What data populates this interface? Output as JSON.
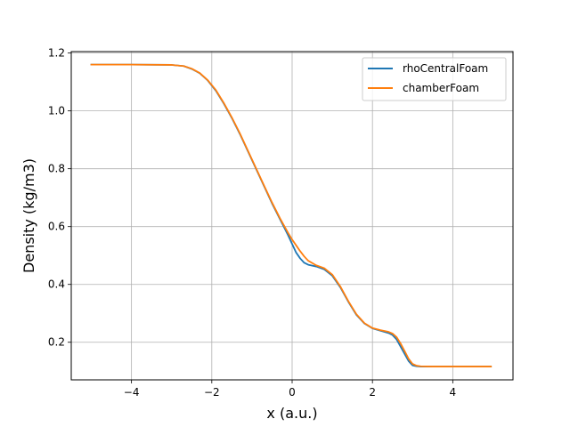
{
  "chart_data": {
    "type": "line",
    "title": "",
    "xlabel": "x (a.u.)",
    "ylabel": "Density (kg/m3)",
    "xlim": [
      -5.5,
      5.5
    ],
    "ylim": [
      0.07,
      1.205
    ],
    "grid": true,
    "legend_position": "top-right",
    "xticks": [
      {
        "value": -4,
        "label": "−4"
      },
      {
        "value": -2,
        "label": "−2"
      },
      {
        "value": 0,
        "label": "0"
      },
      {
        "value": 2,
        "label": "2"
      },
      {
        "value": 4,
        "label": "4"
      }
    ],
    "yticks": [
      {
        "value": 0.2,
        "label": "0.2"
      },
      {
        "value": 0.4,
        "label": "0.4"
      },
      {
        "value": 0.6,
        "label": "0.6"
      },
      {
        "value": 0.8,
        "label": "0.8"
      },
      {
        "value": 1.0,
        "label": "1.0"
      },
      {
        "value": 1.2,
        "label": "1.2"
      }
    ],
    "series": [
      {
        "name": "rhoCentralFoam",
        "color": "#1f77b4",
        "x": [
          -5,
          -4,
          -3,
          -2.7,
          -2.5,
          -2.3,
          -2.1,
          -1.9,
          -1.7,
          -1.5,
          -1.3,
          -1.1,
          -0.9,
          -0.7,
          -0.5,
          -0.3,
          -0.1,
          0.0,
          0.1,
          0.2,
          0.3,
          0.4,
          0.6,
          0.8,
          1.0,
          1.2,
          1.4,
          1.6,
          1.8,
          2.0,
          2.2,
          2.4,
          2.5,
          2.6,
          2.7,
          2.8,
          2.9,
          3.0,
          3.1,
          3.2,
          3.5,
          4.0,
          4.5,
          4.95
        ],
        "y": [
          1.16,
          1.16,
          1.159,
          1.155,
          1.145,
          1.13,
          1.105,
          1.07,
          1.025,
          0.975,
          0.92,
          0.86,
          0.8,
          0.74,
          0.68,
          0.625,
          0.57,
          0.54,
          0.51,
          0.49,
          0.475,
          0.468,
          0.462,
          0.452,
          0.43,
          0.39,
          0.34,
          0.295,
          0.265,
          0.248,
          0.24,
          0.232,
          0.225,
          0.21,
          0.185,
          0.16,
          0.135,
          0.12,
          0.117,
          0.116,
          0.116,
          0.116,
          0.116,
          0.116
        ]
      },
      {
        "name": "chamberFoam",
        "color": "#ff7f0e",
        "x": [
          -5,
          -4,
          -3,
          -2.7,
          -2.5,
          -2.3,
          -2.1,
          -1.9,
          -1.7,
          -1.5,
          -1.3,
          -1.1,
          -0.9,
          -0.7,
          -0.5,
          -0.3,
          -0.1,
          0.0,
          0.1,
          0.2,
          0.3,
          0.4,
          0.6,
          0.8,
          1.0,
          1.2,
          1.4,
          1.6,
          1.8,
          2.0,
          2.2,
          2.4,
          2.5,
          2.6,
          2.7,
          2.8,
          2.9,
          3.0,
          3.1,
          3.2,
          3.5,
          4.0,
          4.5,
          4.95
        ],
        "y": [
          1.16,
          1.16,
          1.159,
          1.155,
          1.146,
          1.131,
          1.106,
          1.072,
          1.027,
          0.977,
          0.922,
          0.862,
          0.802,
          0.742,
          0.683,
          0.628,
          0.578,
          0.555,
          0.535,
          0.515,
          0.497,
          0.482,
          0.466,
          0.456,
          0.434,
          0.393,
          0.342,
          0.297,
          0.266,
          0.249,
          0.242,
          0.236,
          0.23,
          0.218,
          0.196,
          0.17,
          0.143,
          0.125,
          0.119,
          0.117,
          0.116,
          0.116,
          0.116,
          0.116
        ]
      }
    ]
  }
}
